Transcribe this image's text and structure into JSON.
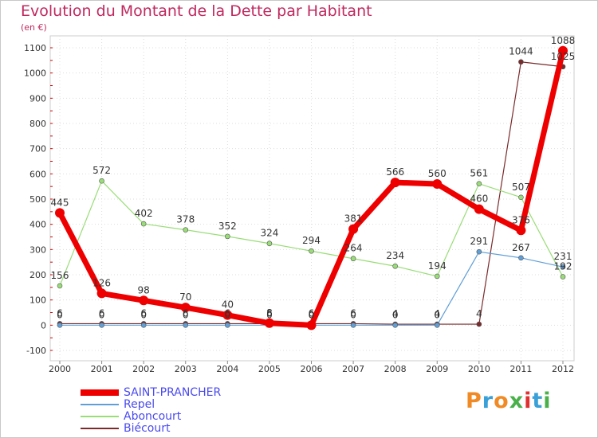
{
  "header": {
    "title": "Evolution du Montant de la Dette par Habitant",
    "subtitle": "(en €)"
  },
  "brand": {
    "name": "Proxiti",
    "letters": [
      "P",
      "r",
      "o",
      "x",
      "i",
      "t",
      "i"
    ],
    "colors": [
      "#f08a24",
      "#3aa0d8",
      "#f08a24",
      "#4ab04a",
      "#e03030",
      "#3aa0d8",
      "#4ab04a"
    ]
  },
  "chart_data": {
    "type": "line",
    "title": "Evolution du Montant de la Dette par Habitant",
    "ylabel": "(en €)",
    "xlabel": "",
    "ylim": [
      -100,
      1100
    ],
    "yticks": [
      -100,
      0,
      100,
      200,
      300,
      400,
      500,
      600,
      700,
      800,
      900,
      1000,
      1100
    ],
    "grid": true,
    "categories": [
      "2000",
      "2001",
      "2002",
      "2003",
      "2004",
      "2005",
      "2006",
      "2007",
      "2008",
      "2009",
      "2010",
      "2011",
      "2012"
    ],
    "series": [
      {
        "name": "SAINT-PRANCHER",
        "color": "#ee0000",
        "values": [
          445,
          126,
          98,
          70,
          40,
          8,
          0,
          381,
          566,
          560,
          460,
          376,
          1088
        ],
        "labels": [
          "445",
          "126",
          "98",
          "70",
          "40",
          "8",
          "0",
          "381",
          "566",
          "560",
          "460",
          "376",
          "1088"
        ]
      },
      {
        "name": "Repel",
        "color": "#5f9ed6",
        "values": [
          0,
          0,
          0,
          0,
          0,
          0,
          0,
          0,
          0,
          0,
          291,
          267,
          231
        ],
        "labels": [
          "0",
          "0",
          "0",
          "0",
          "0",
          "0",
          "0",
          "0",
          "0",
          "0",
          "291",
          "267",
          "231"
        ]
      },
      {
        "name": "Aboncourt",
        "color": "#99dd77",
        "values": [
          156,
          572,
          402,
          378,
          352,
          324,
          294,
          264,
          234,
          194,
          561,
          507,
          192
        ],
        "labels": [
          "156",
          "572",
          "402",
          "378",
          "352",
          "324",
          "294",
          "264",
          "234",
          "194",
          "561",
          "507",
          "192"
        ]
      },
      {
        "name": "Biécourt",
        "color": "#7a2a2a",
        "values": [
          6,
          6,
          6,
          6,
          6,
          6,
          6,
          6,
          4,
          4,
          4,
          1044,
          1025
        ],
        "labels": [
          "6",
          "6",
          "6",
          "6",
          "6",
          "6",
          "6",
          "6",
          "4",
          "4",
          "4",
          "1044",
          "1025"
        ]
      }
    ]
  }
}
